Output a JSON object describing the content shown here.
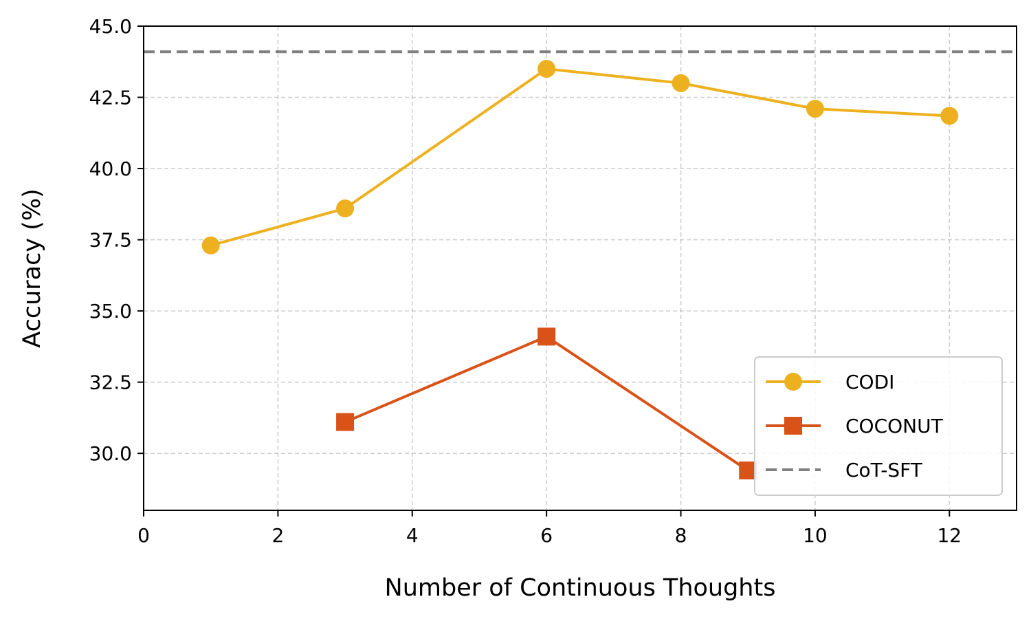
{
  "chart_data": {
    "type": "line",
    "xlabel": "Number of Continuous Thoughts",
    "ylabel": "Accuracy (%)",
    "xlim": [
      0,
      13
    ],
    "ylim": [
      28.0,
      45.0
    ],
    "x_ticks": [
      0,
      2,
      4,
      6,
      8,
      10,
      12
    ],
    "x_tick_labels": [
      "0",
      "2",
      "4",
      "6",
      "8",
      "10",
      "12"
    ],
    "y_ticks": [
      30.0,
      32.5,
      35.0,
      37.5,
      40.0,
      42.5,
      45.0
    ],
    "y_tick_labels": [
      "30.0",
      "32.5",
      "35.0",
      "37.5",
      "40.0",
      "42.5",
      "45.0"
    ],
    "grid": true,
    "legend_position": "lower-right",
    "series": [
      {
        "name": "CODI",
        "color": "#EDB120",
        "marker": "circle",
        "x": [
          1,
          3,
          6,
          8,
          10,
          12
        ],
        "y": [
          37.3,
          38.6,
          43.5,
          43.0,
          42.1,
          41.85
        ]
      },
      {
        "name": "COCONUT",
        "color": "#D95319",
        "marker": "square",
        "x": [
          3,
          6,
          9
        ],
        "y": [
          31.1,
          34.1,
          29.4
        ]
      }
    ],
    "reference_lines": [
      {
        "name": "CoT-SFT",
        "color": "#808080",
        "style": "dashed",
        "y": 44.1
      }
    ]
  }
}
